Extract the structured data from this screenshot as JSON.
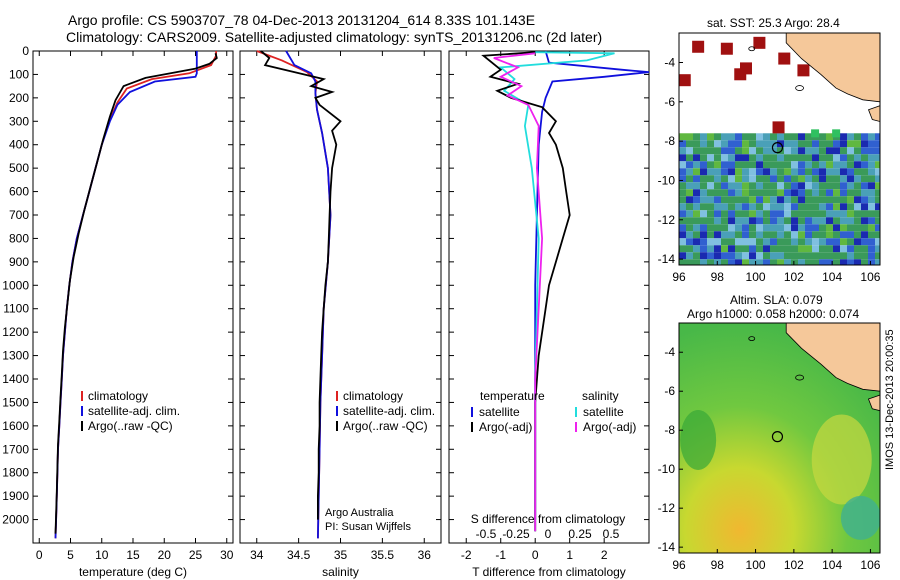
{
  "titles": {
    "line1": "Argo profile: CS 5903707_78 04-Dec-2013 20131204_614 8.33S 101.143E",
    "line2": "Climatology: CARS2009. Satellite-adjusted climatology: synTS_20131206.nc (2d later)"
  },
  "colors": {
    "climatology": "#dd2222",
    "satellite": "#1010dd",
    "argo": "#000000",
    "salinity_sat": "#22dddd",
    "salinity_argo": "#ee22ee"
  },
  "chart_data": [
    {
      "type": "line",
      "id": "temperature",
      "xlabel": "temperature (deg C)",
      "ylim": [
        0,
        2100
      ],
      "y_inverted": true,
      "xlim": [
        -1,
        31
      ],
      "xticks": [
        0,
        5,
        10,
        15,
        20,
        25,
        30
      ],
      "yticks": [
        0,
        100,
        200,
        300,
        400,
        500,
        600,
        700,
        800,
        900,
        1000,
        1100,
        1200,
        1300,
        1400,
        1500,
        1600,
        1700,
        1800,
        1900,
        2000
      ],
      "legend": [
        "climatology",
        "satellite-adj. clim.",
        "Argo(..raw -QC)"
      ],
      "series": [
        {
          "name": "climatology",
          "points": [
            [
              28.3,
              0
            ],
            [
              28.3,
              20
            ],
            [
              27.5,
              60
            ],
            [
              24,
              95
            ],
            [
              18,
              120
            ],
            [
              14,
              160
            ],
            [
              12.5,
              220
            ],
            [
              11.2,
              300
            ],
            [
              10,
              400
            ],
            [
              9,
              500
            ],
            [
              8,
              600
            ],
            [
              7,
              700
            ],
            [
              6,
              800
            ],
            [
              5.3,
              900
            ],
            [
              4.8,
              1000
            ],
            [
              4.4,
              1100
            ],
            [
              4.1,
              1200
            ],
            [
              3.8,
              1300
            ],
            [
              3.6,
              1400
            ],
            [
              3.4,
              1500
            ],
            [
              3.2,
              1600
            ],
            [
              3.0,
              1700
            ],
            [
              2.9,
              1800
            ],
            [
              2.8,
              1900
            ],
            [
              2.7,
              2000
            ],
            [
              2.6,
              2080
            ]
          ]
        },
        {
          "name": "satellite-adj. clim.",
          "points": [
            [
              25.2,
              0
            ],
            [
              25.2,
              95
            ],
            [
              25,
              110
            ],
            [
              18.5,
              130
            ],
            [
              14.5,
              175
            ],
            [
              12.5,
              230
            ],
            [
              11.3,
              300
            ],
            [
              10,
              400
            ],
            [
              9,
              500
            ],
            [
              8,
              600
            ],
            [
              7,
              700
            ],
            [
              6,
              800
            ],
            [
              5.3,
              900
            ],
            [
              4.8,
              1000
            ],
            [
              4.4,
              1100
            ],
            [
              4.1,
              1200
            ],
            [
              3.8,
              1300
            ],
            [
              3.6,
              1400
            ],
            [
              3.4,
              1500
            ],
            [
              3.2,
              1600
            ],
            [
              3.0,
              1700
            ],
            [
              2.9,
              1800
            ],
            [
              2.8,
              1900
            ],
            [
              2.7,
              2000
            ],
            [
              2.6,
              2080
            ]
          ]
        },
        {
          "name": "Argo(..raw -QC)",
          "points": [
            [
              28.2,
              10
            ],
            [
              28.4,
              30
            ],
            [
              27.2,
              55
            ],
            [
              25,
              75
            ],
            [
              21,
              95
            ],
            [
              17,
              115
            ],
            [
              13.5,
              150
            ],
            [
              12.2,
              210
            ],
            [
              11.3,
              280
            ],
            [
              10.2,
              380
            ],
            [
              9.2,
              480
            ],
            [
              8.2,
              580
            ],
            [
              7.2,
              680
            ],
            [
              6.3,
              780
            ],
            [
              5.5,
              880
            ],
            [
              4.9,
              980
            ],
            [
              4.5,
              1080
            ],
            [
              4.1,
              1180
            ],
            [
              3.8,
              1280
            ],
            [
              3.6,
              1380
            ],
            [
              3.4,
              1480
            ],
            [
              3.2,
              1580
            ],
            [
              3.0,
              1680
            ],
            [
              2.9,
              1780
            ],
            [
              2.8,
              1880
            ],
            [
              2.7,
              1980
            ],
            [
              2.6,
              2060
            ]
          ]
        }
      ]
    },
    {
      "type": "line",
      "id": "salinity",
      "xlabel": "salinity",
      "ylim": [
        0,
        2100
      ],
      "y_inverted": true,
      "xlim": [
        33.8,
        36.2
      ],
      "xticks": [
        34,
        34.5,
        35,
        35.5,
        36
      ],
      "legend": [
        "climatology",
        "satellite-adj. clim.",
        "Argo(..raw -QC)"
      ],
      "annotations": [
        "Argo Australia",
        "PI: Susan Wijffels"
      ],
      "series": [
        {
          "name": "climatology",
          "points": [
            [
              34.0,
              0
            ],
            [
              34.3,
              40
            ],
            [
              34.6,
              90
            ],
            [
              34.72,
              130
            ],
            [
              34.7,
              180
            ],
            [
              34.72,
              250
            ],
            [
              34.78,
              350
            ],
            [
              34.85,
              500
            ],
            [
              34.88,
              700
            ],
            [
              34.85,
              900
            ],
            [
              34.8,
              1100
            ],
            [
              34.78,
              1300
            ],
            [
              34.76,
              1500
            ],
            [
              34.75,
              1700
            ],
            [
              34.74,
              1900
            ],
            [
              34.73,
              2080
            ]
          ]
        },
        {
          "name": "satellite-adj. clim.",
          "points": [
            [
              34.35,
              0
            ],
            [
              34.45,
              60
            ],
            [
              34.65,
              95
            ],
            [
              34.7,
              130
            ],
            [
              34.7,
              180
            ],
            [
              34.72,
              250
            ],
            [
              34.78,
              350
            ],
            [
              34.85,
              500
            ],
            [
              34.88,
              700
            ],
            [
              34.85,
              900
            ],
            [
              34.8,
              1100
            ],
            [
              34.78,
              1300
            ],
            [
              34.76,
              1500
            ],
            [
              34.75,
              1700
            ],
            [
              34.74,
              1900
            ],
            [
              34.73,
              2080
            ]
          ]
        },
        {
          "name": "Argo(..raw -QC)",
          "points": [
            [
              34.05,
              0
            ],
            [
              34.15,
              30
            ],
            [
              34.1,
              60
            ],
            [
              34.45,
              90
            ],
            [
              34.8,
              120
            ],
            [
              34.65,
              150
            ],
            [
              34.9,
              175
            ],
            [
              34.7,
              200
            ],
            [
              34.75,
              230
            ],
            [
              35.0,
              300
            ],
            [
              34.9,
              340
            ],
            [
              34.95,
              400
            ],
            [
              34.9,
              500
            ],
            [
              34.88,
              600
            ],
            [
              34.87,
              700
            ],
            [
              34.86,
              800
            ],
            [
              34.85,
              900
            ],
            [
              34.82,
              1000
            ],
            [
              34.8,
              1100
            ],
            [
              34.78,
              1200
            ],
            [
              34.77,
              1300
            ],
            [
              34.76,
              1400
            ],
            [
              34.75,
              1500
            ],
            [
              34.75,
              1600
            ],
            [
              34.74,
              1700
            ],
            [
              34.74,
              1800
            ],
            [
              34.73,
              1900
            ],
            [
              34.73,
              2000
            ]
          ]
        }
      ]
    },
    {
      "type": "line",
      "id": "difference",
      "xlabel": "T difference from climatology",
      "xlabel_top": "S difference from climatology",
      "ylim": [
        0,
        2100
      ],
      "y_inverted": true,
      "xlim": [
        -2.5,
        3.3
      ],
      "xticks": [
        -2,
        -1,
        0,
        1,
        2
      ],
      "s_xticks": [
        "-0.5",
        "-0.25",
        "0",
        "0.25",
        "0.5"
      ],
      "legend_headers": [
        "temperature",
        "salinity"
      ],
      "legend": [
        "satellite",
        "Argo(-adj)",
        "satellite",
        "Argo(-adj)"
      ],
      "series": [
        {
          "name": "satellite",
          "points": [
            [
              0.3,
              0
            ],
            [
              0.4,
              50
            ],
            [
              2.5,
              80
            ],
            [
              3.3,
              90
            ],
            [
              2.0,
              110
            ],
            [
              0.5,
              130
            ],
            [
              0.3,
              200
            ],
            [
              0.2,
              260
            ],
            [
              0.1,
              400
            ],
            [
              0.05,
              700
            ],
            [
              0,
              1000
            ],
            [
              0,
              1500
            ],
            [
              0,
              2000
            ]
          ]
        },
        {
          "name": "satellite",
          "points": [
            [
              0,
              5
            ],
            [
              2.3,
              10
            ],
            [
              1.5,
              40
            ],
            [
              -1.0,
              70
            ],
            [
              -0.6,
              120
            ],
            [
              -0.9,
              170
            ],
            [
              -0.2,
              230
            ],
            [
              -0.3,
              320
            ],
            [
              -0.1,
              500
            ],
            [
              0.1,
              800
            ],
            [
              0.05,
              1100
            ],
            [
              0,
              1400
            ],
            [
              0,
              1800
            ],
            [
              0,
              2050
            ]
          ]
        },
        {
          "name": "Argo(-adj)",
          "points": [
            [
              0,
              5
            ],
            [
              -1.5,
              20
            ],
            [
              -1.0,
              80
            ],
            [
              -1.3,
              110
            ],
            [
              -0.5,
              140
            ],
            [
              -1.1,
              170
            ],
            [
              -0.7,
              200
            ],
            [
              0.2,
              240
            ],
            [
              0.6,
              300
            ],
            [
              0.4,
              350
            ],
            [
              0.6,
              400
            ],
            [
              0.8,
              500
            ],
            [
              0.9,
              600
            ],
            [
              1.0,
              700
            ],
            [
              0.8,
              800
            ],
            [
              0.6,
              900
            ],
            [
              0.4,
              1000
            ],
            [
              0.3,
              1100
            ],
            [
              0.1,
              1300
            ],
            [
              0,
              1500
            ],
            [
              0,
              1800
            ],
            [
              0,
              2050
            ]
          ]
        },
        {
          "name": "Argo(-adj)",
          "points": [
            [
              0,
              10
            ],
            [
              -1.2,
              30
            ],
            [
              -0.5,
              70
            ],
            [
              -1.0,
              110
            ],
            [
              -0.4,
              150
            ],
            [
              -0.8,
              190
            ],
            [
              -0.2,
              230
            ],
            [
              0.1,
              320
            ],
            [
              0.05,
              500
            ],
            [
              0.2,
              800
            ],
            [
              0.1,
              1100
            ],
            [
              0,
              1400
            ],
            [
              0,
              1800
            ],
            [
              0,
              2050
            ]
          ]
        }
      ]
    },
    {
      "type": "heatmap",
      "id": "sst_map",
      "title": "sat. SST: 25.3 Argo: 28.4",
      "xlim": [
        96,
        106.5
      ],
      "ylim": [
        -14.3,
        -2.5
      ],
      "xticks": [
        96,
        98,
        100,
        102,
        104,
        106
      ],
      "yticks": [
        -4,
        -6,
        -8,
        -10,
        -12,
        -14
      ],
      "marker": [
        101.143,
        -8.33
      ]
    },
    {
      "type": "heatmap",
      "id": "sla_map",
      "title_line1": "Altim. SLA: 0.079",
      "title_line2": "Argo h1000: 0.058 h2000: 0.074",
      "xlim": [
        96,
        106.5
      ],
      "ylim": [
        -14.3,
        -2.5
      ],
      "xticks": [
        96,
        98,
        100,
        102,
        104,
        106
      ],
      "yticks": [
        -4,
        -6,
        -8,
        -10,
        -12,
        -14
      ],
      "marker": [
        101.143,
        -8.33
      ]
    }
  ],
  "footer": {
    "vertical": "IMOS 13-Dec-2013 20:00:35"
  }
}
